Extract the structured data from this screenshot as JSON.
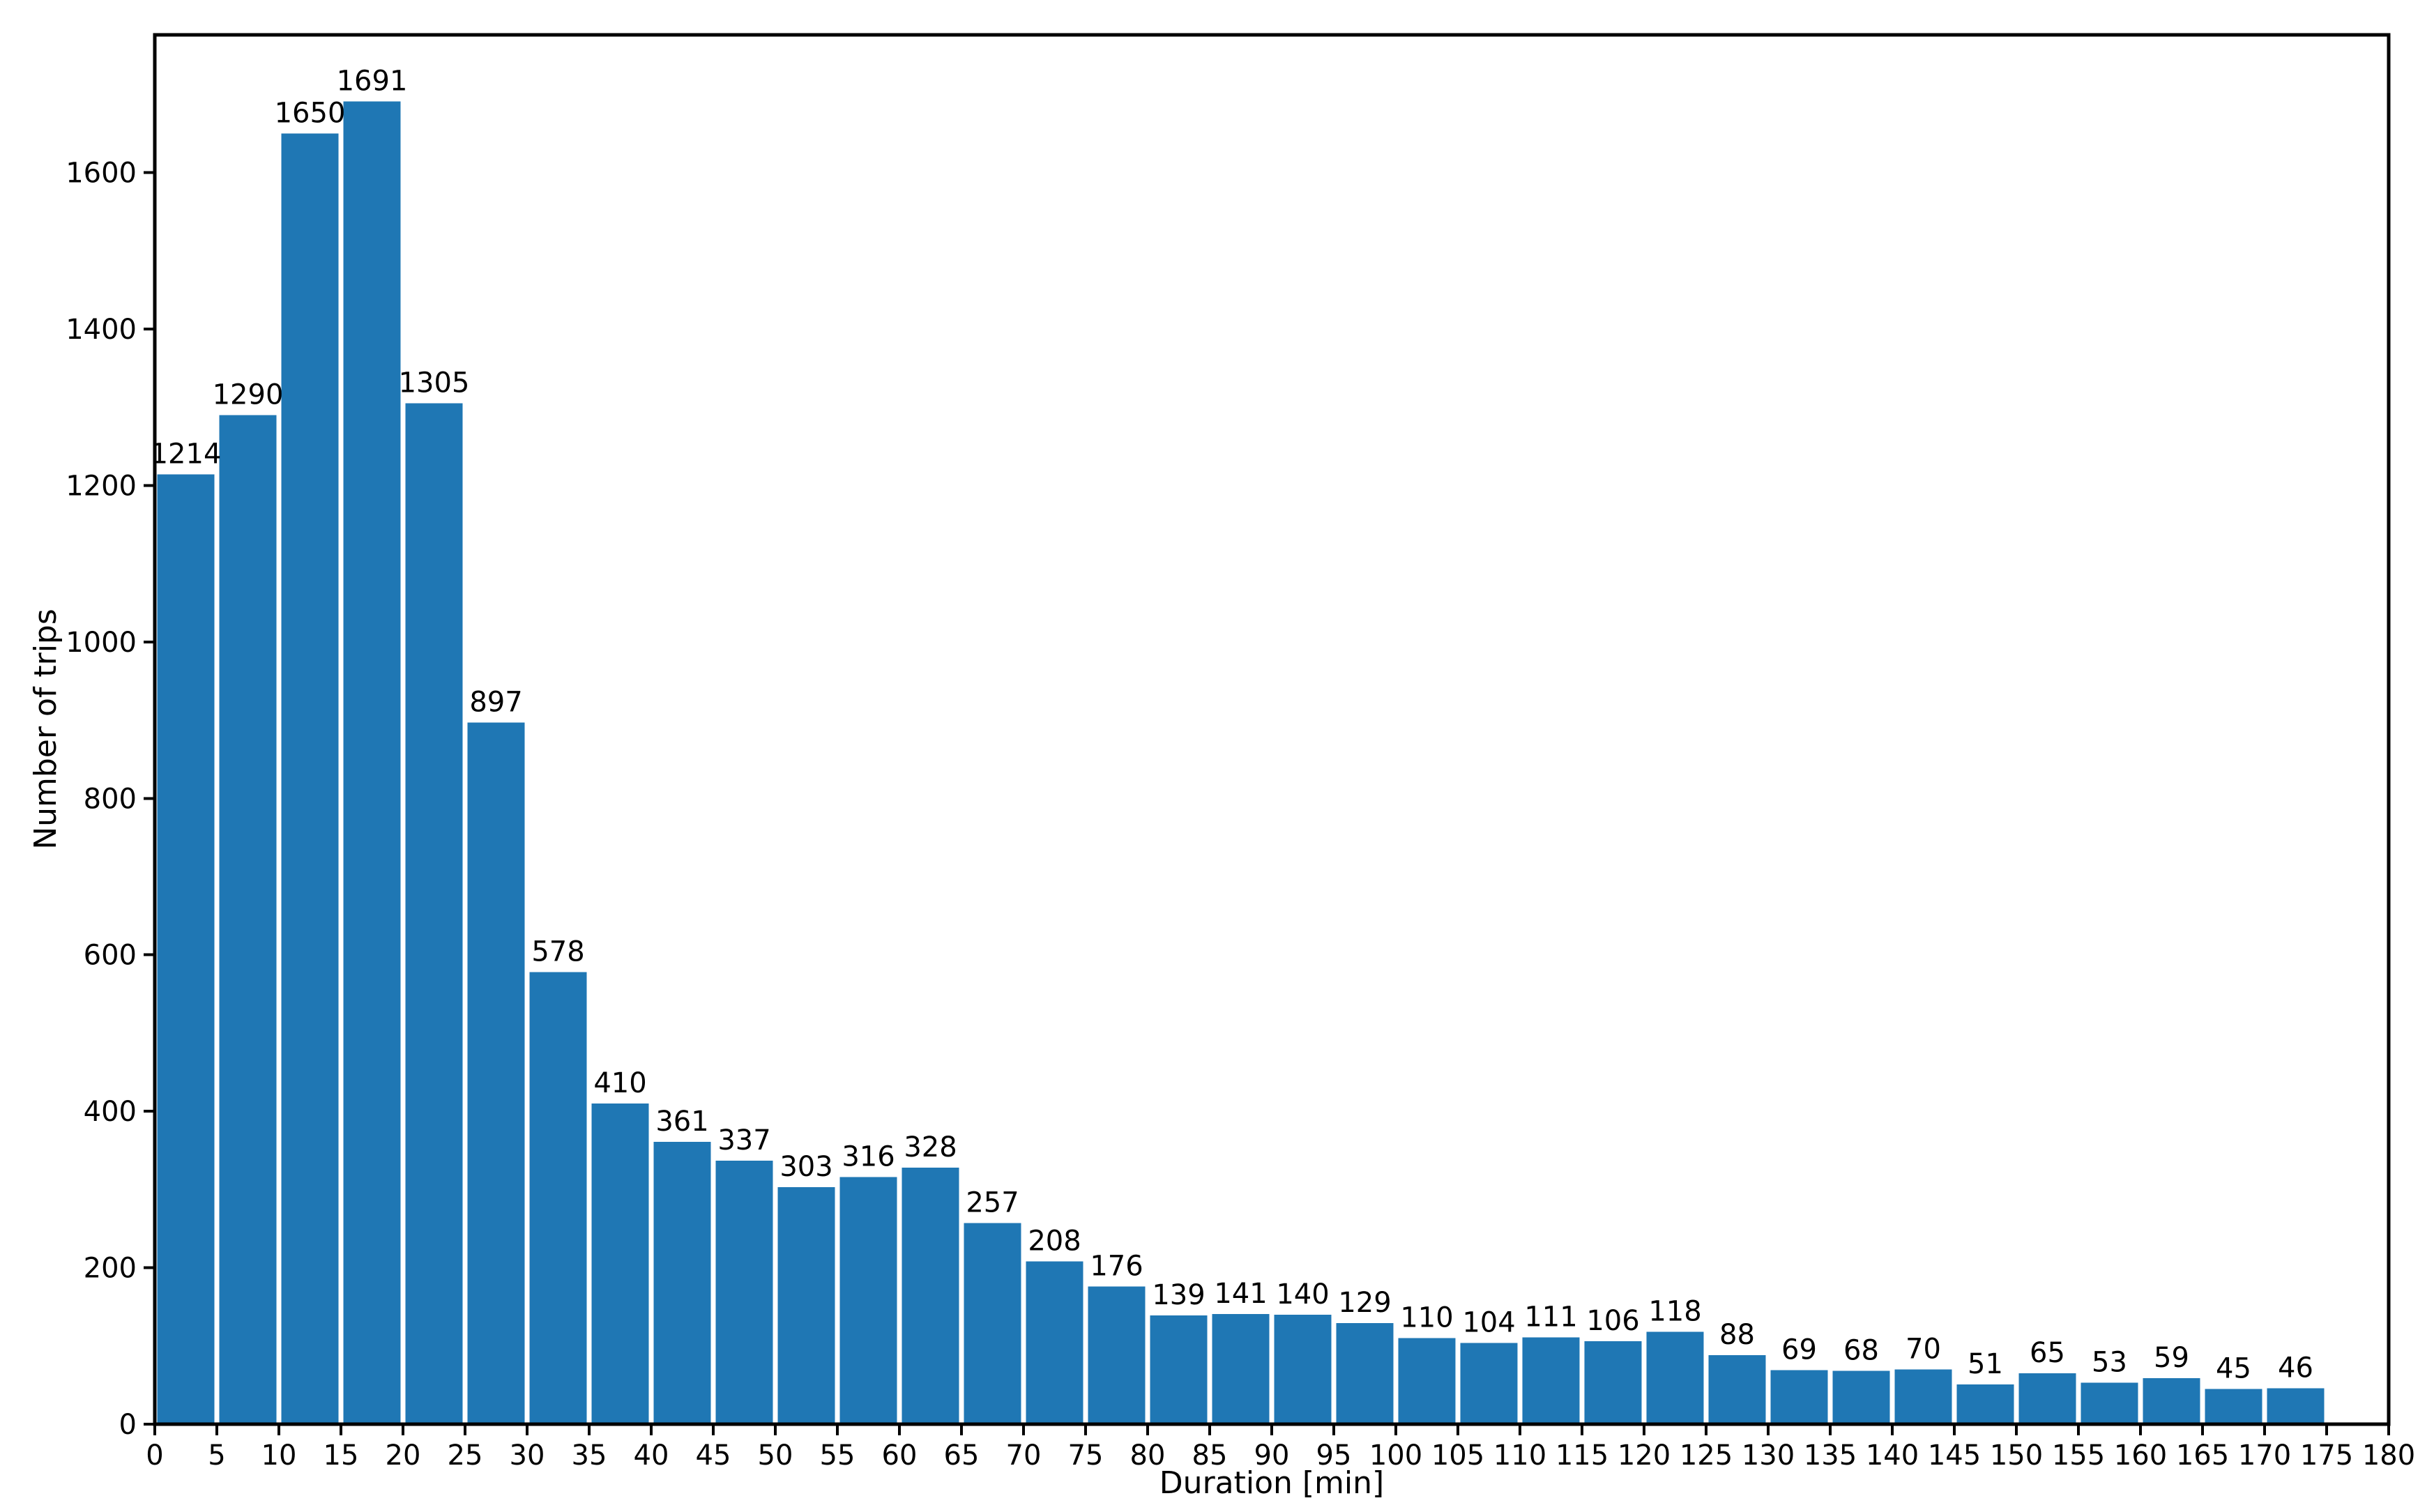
{
  "chart_data": {
    "type": "bar",
    "title": "",
    "xlabel": "Duration [min]",
    "ylabel": "Number of trips",
    "bin_width": 5,
    "bins": [
      0,
      5,
      10,
      15,
      20,
      25,
      30,
      35,
      40,
      45,
      50,
      55,
      60,
      65,
      70,
      75,
      80,
      85,
      90,
      95,
      100,
      105,
      110,
      115,
      120,
      125,
      130,
      135,
      140,
      145,
      150,
      155,
      160,
      165,
      170
    ],
    "values": [
      1214,
      1290,
      1650,
      1691,
      1305,
      897,
      578,
      410,
      361,
      337,
      303,
      316,
      328,
      257,
      208,
      176,
      139,
      141,
      140,
      129,
      110,
      104,
      111,
      106,
      118,
      88,
      69,
      68,
      70,
      51,
      65,
      53,
      59,
      45,
      46
    ],
    "bar_value_labels": [
      "1214",
      "1290",
      "1650",
      "1691",
      "1305",
      "897",
      "578",
      "410",
      "361",
      "337",
      "303",
      "316",
      "328",
      "257",
      "208",
      "176",
      "139",
      "141",
      "140",
      "129",
      "110",
      "104",
      "111",
      "106",
      "118",
      "88",
      "69",
      "68",
      "70",
      "51",
      "65",
      "53",
      "59",
      "45",
      "46"
    ],
    "x_ticks": [
      0,
      5,
      10,
      15,
      20,
      25,
      30,
      35,
      40,
      45,
      50,
      55,
      60,
      65,
      70,
      75,
      80,
      85,
      90,
      95,
      100,
      105,
      110,
      115,
      120,
      125,
      130,
      135,
      140,
      145,
      150,
      155,
      160,
      165,
      170,
      175,
      180
    ],
    "y_ticks": [
      0,
      200,
      400,
      600,
      800,
      1000,
      1200,
      1400,
      1600
    ],
    "xlim": [
      0,
      180
    ],
    "ylim": [
      0,
      1776
    ],
    "rwidth": 0.92,
    "bar_color": "#1f77b4",
    "axis_color": "#000000",
    "grid": false,
    "legend": null
  }
}
